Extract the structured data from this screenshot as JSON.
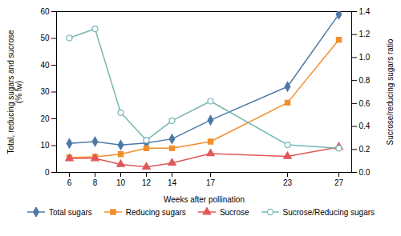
{
  "chart_data": {
    "type": "line",
    "x": [
      6,
      8,
      10,
      12,
      14,
      17,
      23,
      27
    ],
    "xlabel": "Weeks after pollination",
    "ylabel": "Total, reducing sugars and sucrose\n(% fw)",
    "y2label": "Sucrose/reducing sugars ratio",
    "xlim": [
      5,
      28
    ],
    "xticks": [
      6,
      8,
      10,
      12,
      14,
      17,
      23,
      27
    ],
    "ylim": [
      0,
      60
    ],
    "yticks": [
      0,
      10,
      20,
      30,
      40,
      50,
      60
    ],
    "y2lim": [
      0,
      1.4
    ],
    "y2ticks": [
      {
        "value": 0,
        "label": "0.0"
      },
      0.2,
      0.4,
      0.6,
      0.8,
      {
        "value": 1.0,
        "label": "1.0"
      },
      1.2,
      1.4
    ],
    "grid": false,
    "legend": "bottom",
    "series": [
      {
        "name": "Total sugars",
        "values": [
          10.8,
          11.5,
          10.2,
          11.0,
          12.5,
          19.5,
          32.0,
          59.0
        ],
        "marker": "diamond"
      },
      {
        "name": "Reducing sugars",
        "values": [
          5.5,
          5.8,
          6.8,
          9.0,
          9.0,
          11.5,
          26.0,
          49.5
        ],
        "marker": "square"
      },
      {
        "name": "Sucrose",
        "values": [
          5.2,
          5.2,
          3.0,
          2.0,
          3.5,
          7.0,
          6.0,
          9.5
        ],
        "marker": "triangle"
      },
      {
        "name": "Sucrose/Reducing sugars",
        "values": [
          1.17,
          1.25,
          0.52,
          0.28,
          0.45,
          0.62,
          0.24,
          0.21
        ],
        "marker": "open_circle",
        "axis": "y2"
      }
    ]
  }
}
